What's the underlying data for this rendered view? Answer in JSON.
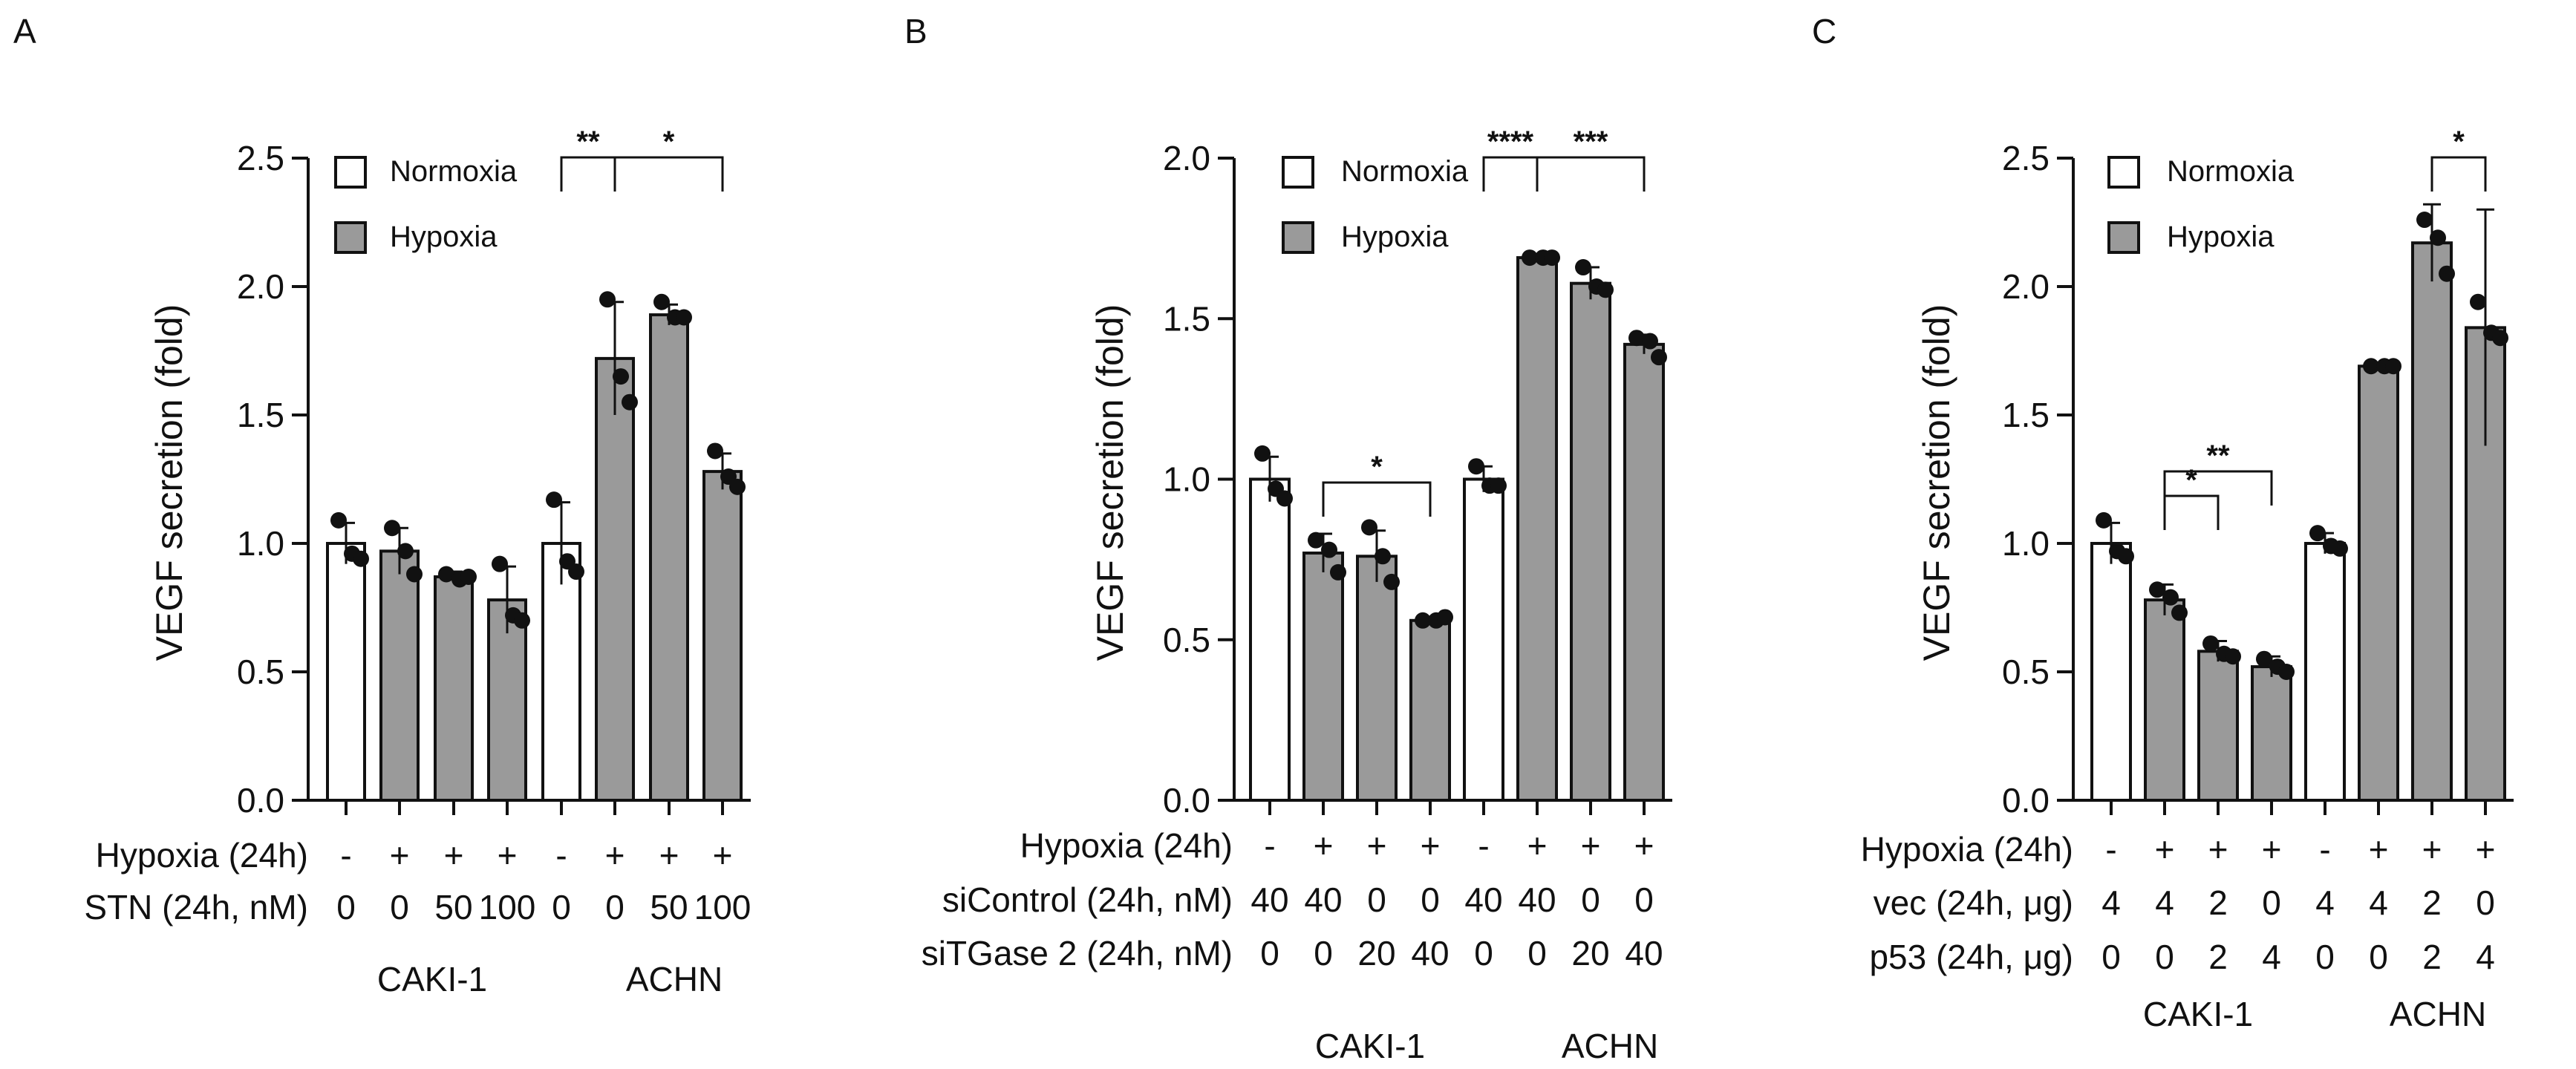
{
  "figure": {
    "panels": [
      {
        "letter": "A",
        "legend": [
          "Normoxia",
          "Hypoxia"
        ],
        "rows": [
          {
            "label": "Hypoxia (24h)",
            "values": [
              "-",
              "+",
              "+",
              "+",
              "-",
              "+",
              "+",
              "+"
            ]
          },
          {
            "label": "STN (24h, nM)",
            "values": [
              "0",
              "0",
              "50",
              "100",
              "0",
              "0",
              "50",
              "100"
            ]
          }
        ],
        "groups": [
          "CAKI-1",
          "ACHN"
        ],
        "significance": [
          {
            "from": 4,
            "to": 5,
            "label": "**"
          },
          {
            "from": 5,
            "to": 7,
            "label": "*"
          }
        ]
      },
      {
        "letter": "B",
        "legend": [
          "Normoxia",
          "Hypoxia"
        ],
        "rows": [
          {
            "label": "Hypoxia (24h)",
            "values": [
              "-",
              "+",
              "+",
              "+",
              "-",
              "+",
              "+",
              "+"
            ]
          },
          {
            "label": "siControl (24h, nM)",
            "values": [
              "40",
              "40",
              "0",
              "0",
              "40",
              "40",
              "0",
              "0"
            ]
          },
          {
            "label": "siTGase 2 (24h, nM)",
            "values": [
              "0",
              "0",
              "20",
              "40",
              "0",
              "0",
              "20",
              "40"
            ]
          }
        ],
        "groups": [
          "CAKI-1",
          "ACHN"
        ],
        "significance": [
          {
            "from": 1,
            "to": 3,
            "label": "*"
          },
          {
            "from": 4,
            "to": 5,
            "label": "****"
          },
          {
            "from": 5,
            "to": 7,
            "label": "***"
          }
        ]
      },
      {
        "letter": "C",
        "legend": [
          "Normoxia",
          "Hypoxia"
        ],
        "rows": [
          {
            "label": "Hypoxia (24h)",
            "values": [
              "-",
              "+",
              "+",
              "+",
              "-",
              "+",
              "+",
              "+"
            ]
          },
          {
            "label": "vec (24h, μg)",
            "values": [
              "4",
              "4",
              "2",
              "0",
              "4",
              "4",
              "2",
              "0"
            ]
          },
          {
            "label": "p53 (24h, μg)",
            "values": [
              "0",
              "0",
              "2",
              "4",
              "0",
              "0",
              "2",
              "4"
            ]
          }
        ],
        "groups": [
          "CAKI-1",
          "ACHN"
        ],
        "significance": [
          {
            "from": 1,
            "to": 2,
            "label": "*"
          },
          {
            "from": 1,
            "to": 3,
            "label": "**"
          },
          {
            "from": 6,
            "to": 7,
            "label": "*"
          }
        ]
      }
    ]
  },
  "colors": {
    "normoxia_fill": "#ffffff",
    "hypoxia_fill": "#9a9a9a",
    "ink": "#111111"
  },
  "chart_data": [
    {
      "type": "bar",
      "title": "A",
      "ylabel": "VEGF secretion (fold)",
      "ylim": [
        0,
        2.5
      ],
      "yticks": [
        "0.0",
        "0.5",
        "1.0",
        "1.5",
        "2.0",
        "2.5"
      ],
      "conditions": [
        "Normoxia",
        "Hypoxia",
        "Hypoxia",
        "Hypoxia",
        "Normoxia",
        "Hypoxia",
        "Hypoxia",
        "Hypoxia"
      ],
      "values": [
        1.0,
        0.97,
        0.87,
        0.78,
        1.0,
        1.72,
        1.89,
        1.28
      ],
      "errors": [
        0.08,
        0.09,
        0.02,
        0.13,
        0.16,
        0.22,
        0.04,
        0.07
      ],
      "points": [
        [
          1.09,
          0.96,
          0.94
        ],
        [
          1.06,
          0.97,
          0.88
        ],
        [
          0.88,
          0.86,
          0.87
        ],
        [
          0.92,
          0.72,
          0.7
        ],
        [
          1.17,
          0.93,
          0.89
        ],
        [
          1.95,
          1.65,
          1.55
        ],
        [
          1.94,
          1.88,
          1.88
        ],
        [
          1.36,
          1.26,
          1.22
        ]
      ]
    },
    {
      "type": "bar",
      "title": "B",
      "ylabel": "VEGF secretion (fold)",
      "ylim": [
        0,
        2.0
      ],
      "yticks": [
        "0.0",
        "0.5",
        "1.0",
        "1.5",
        "2.0"
      ],
      "conditions": [
        "Normoxia",
        "Hypoxia",
        "Hypoxia",
        "Hypoxia",
        "Normoxia",
        "Hypoxia",
        "Hypoxia",
        "Hypoxia"
      ],
      "values": [
        1.0,
        0.77,
        0.76,
        0.56,
        1.0,
        1.69,
        1.61,
        1.42
      ],
      "errors": [
        0.07,
        0.06,
        0.08,
        0.01,
        0.04,
        0.01,
        0.05,
        0.03
      ],
      "points": [
        [
          1.08,
          0.97,
          0.94
        ],
        [
          0.81,
          0.78,
          0.71
        ],
        [
          0.85,
          0.76,
          0.68
        ],
        [
          0.56,
          0.56,
          0.57
        ],
        [
          1.04,
          0.98,
          0.98
        ],
        [
          1.69,
          1.69,
          1.69
        ],
        [
          1.66,
          1.6,
          1.59
        ],
        [
          1.44,
          1.43,
          1.38
        ]
      ]
    },
    {
      "type": "bar",
      "title": "C",
      "ylabel": "VEGF secretion (fold)",
      "ylim": [
        0,
        2.5
      ],
      "yticks": [
        "0.0",
        "0.5",
        "1.0",
        "1.5",
        "2.0",
        "2.5"
      ],
      "conditions": [
        "Normoxia",
        "Hypoxia",
        "Hypoxia",
        "Hypoxia",
        "Normoxia",
        "Hypoxia",
        "Hypoxia",
        "Hypoxia"
      ],
      "values": [
        1.0,
        0.78,
        0.58,
        0.52,
        1.0,
        1.69,
        2.17,
        1.84
      ],
      "errors": [
        0.08,
        0.06,
        0.04,
        0.04,
        0.04,
        0.01,
        0.15,
        0.46
      ],
      "points": [
        [
          1.09,
          0.97,
          0.95
        ],
        [
          0.82,
          0.79,
          0.73
        ],
        [
          0.61,
          0.57,
          0.56
        ],
        [
          0.55,
          0.52,
          0.5
        ],
        [
          1.04,
          0.99,
          0.98
        ],
        [
          1.69,
          1.69,
          1.69
        ],
        [
          2.26,
          2.19,
          2.05
        ],
        [
          1.94,
          1.82,
          1.8
        ]
      ]
    }
  ]
}
